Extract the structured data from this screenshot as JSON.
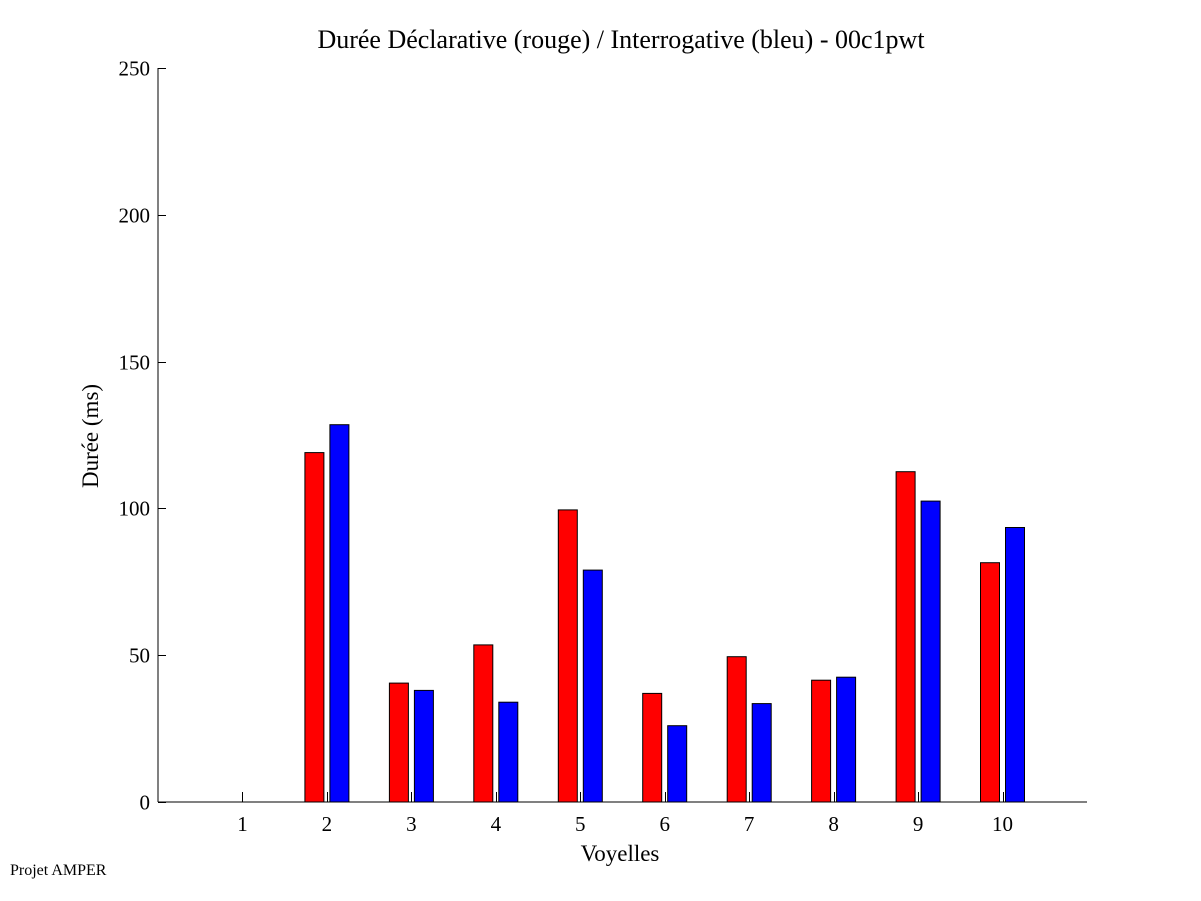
{
  "footer": {
    "text": "Projet AMPER"
  },
  "chart_data": {
    "type": "bar",
    "title": "Durée Déclarative (rouge) / Interrogative (bleu) - 00c1pwt",
    "xlabel": "Voyelles",
    "ylabel": "Durée (ms)",
    "categories": [
      "1",
      "2",
      "3",
      "4",
      "5",
      "6",
      "7",
      "8",
      "9",
      "10"
    ],
    "ylim": [
      0,
      250
    ],
    "yticks": [
      0,
      50,
      100,
      150,
      200,
      250
    ],
    "grid": false,
    "series": [
      {
        "color": "#ff0000",
        "values": [
          0,
          119,
          40.5,
          53.5,
          99.5,
          37,
          49.5,
          41.5,
          112.5,
          81.5
        ]
      },
      {
        "color": "#0000ff",
        "values": [
          0,
          128.5,
          38,
          34,
          79,
          26,
          33.5,
          42.5,
          102.5,
          93.5
        ]
      }
    ]
  }
}
